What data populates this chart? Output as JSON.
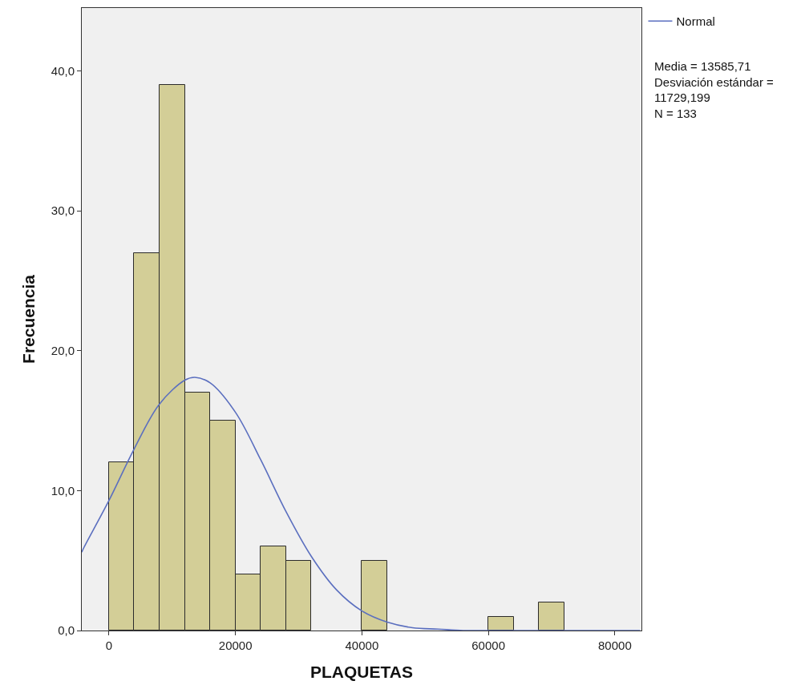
{
  "chart_data": {
    "type": "histogram",
    "xlabel": "PLAQUETAS",
    "ylabel": "Frecuencia",
    "bins": [
      0,
      4000,
      8000,
      12000,
      16000,
      20000,
      24000,
      28000,
      32000,
      36000,
      40000,
      44000,
      48000,
      52000,
      56000,
      60000,
      64000,
      68000,
      72000
    ],
    "values": [
      12,
      27,
      39,
      17,
      15,
      4,
      6,
      5,
      0,
      0,
      5,
      0,
      0,
      0,
      0,
      1,
      0,
      2
    ],
    "color": "#d3ce97",
    "series": [
      {
        "name": "Normal",
        "type": "line",
        "color": "#5b6fbf",
        "x": [
          -4300,
          -4000,
          0,
          4000,
          8000,
          12000,
          13586,
          16000,
          20000,
          24000,
          28000,
          32000,
          36000,
          40000,
          44000,
          48000,
          52000,
          56000,
          60000,
          64000,
          68000,
          72000,
          76000,
          80000,
          84000
        ],
        "values": [
          5.6,
          5.9,
          9.3,
          13.0,
          16.2,
          17.9,
          18.1,
          17.7,
          15.6,
          12.2,
          8.5,
          5.3,
          2.9,
          1.4,
          0.6,
          0.2,
          0.1,
          0.0,
          0.0,
          0.0,
          0.0,
          0.0,
          0.0,
          0.0,
          0.0
        ]
      }
    ],
    "xlim": [
      -4300,
      84200
    ],
    "xticks": [
      0,
      20000,
      40000,
      60000,
      80000
    ],
    "ylim": [
      0,
      44.5
    ],
    "yticks": [
      {
        "value": 0,
        "label": "0,0"
      },
      {
        "value": 10,
        "label": "10,0"
      },
      {
        "value": 20,
        "label": "20,0"
      },
      {
        "value": 30,
        "label": "30,0"
      },
      {
        "value": 40,
        "label": "40,0"
      }
    ],
    "grid": false,
    "legend": "top right",
    "annotations": [
      "Media = 13585,71\nDesviación estándar =\n11729,199\nN = 133"
    ]
  }
}
